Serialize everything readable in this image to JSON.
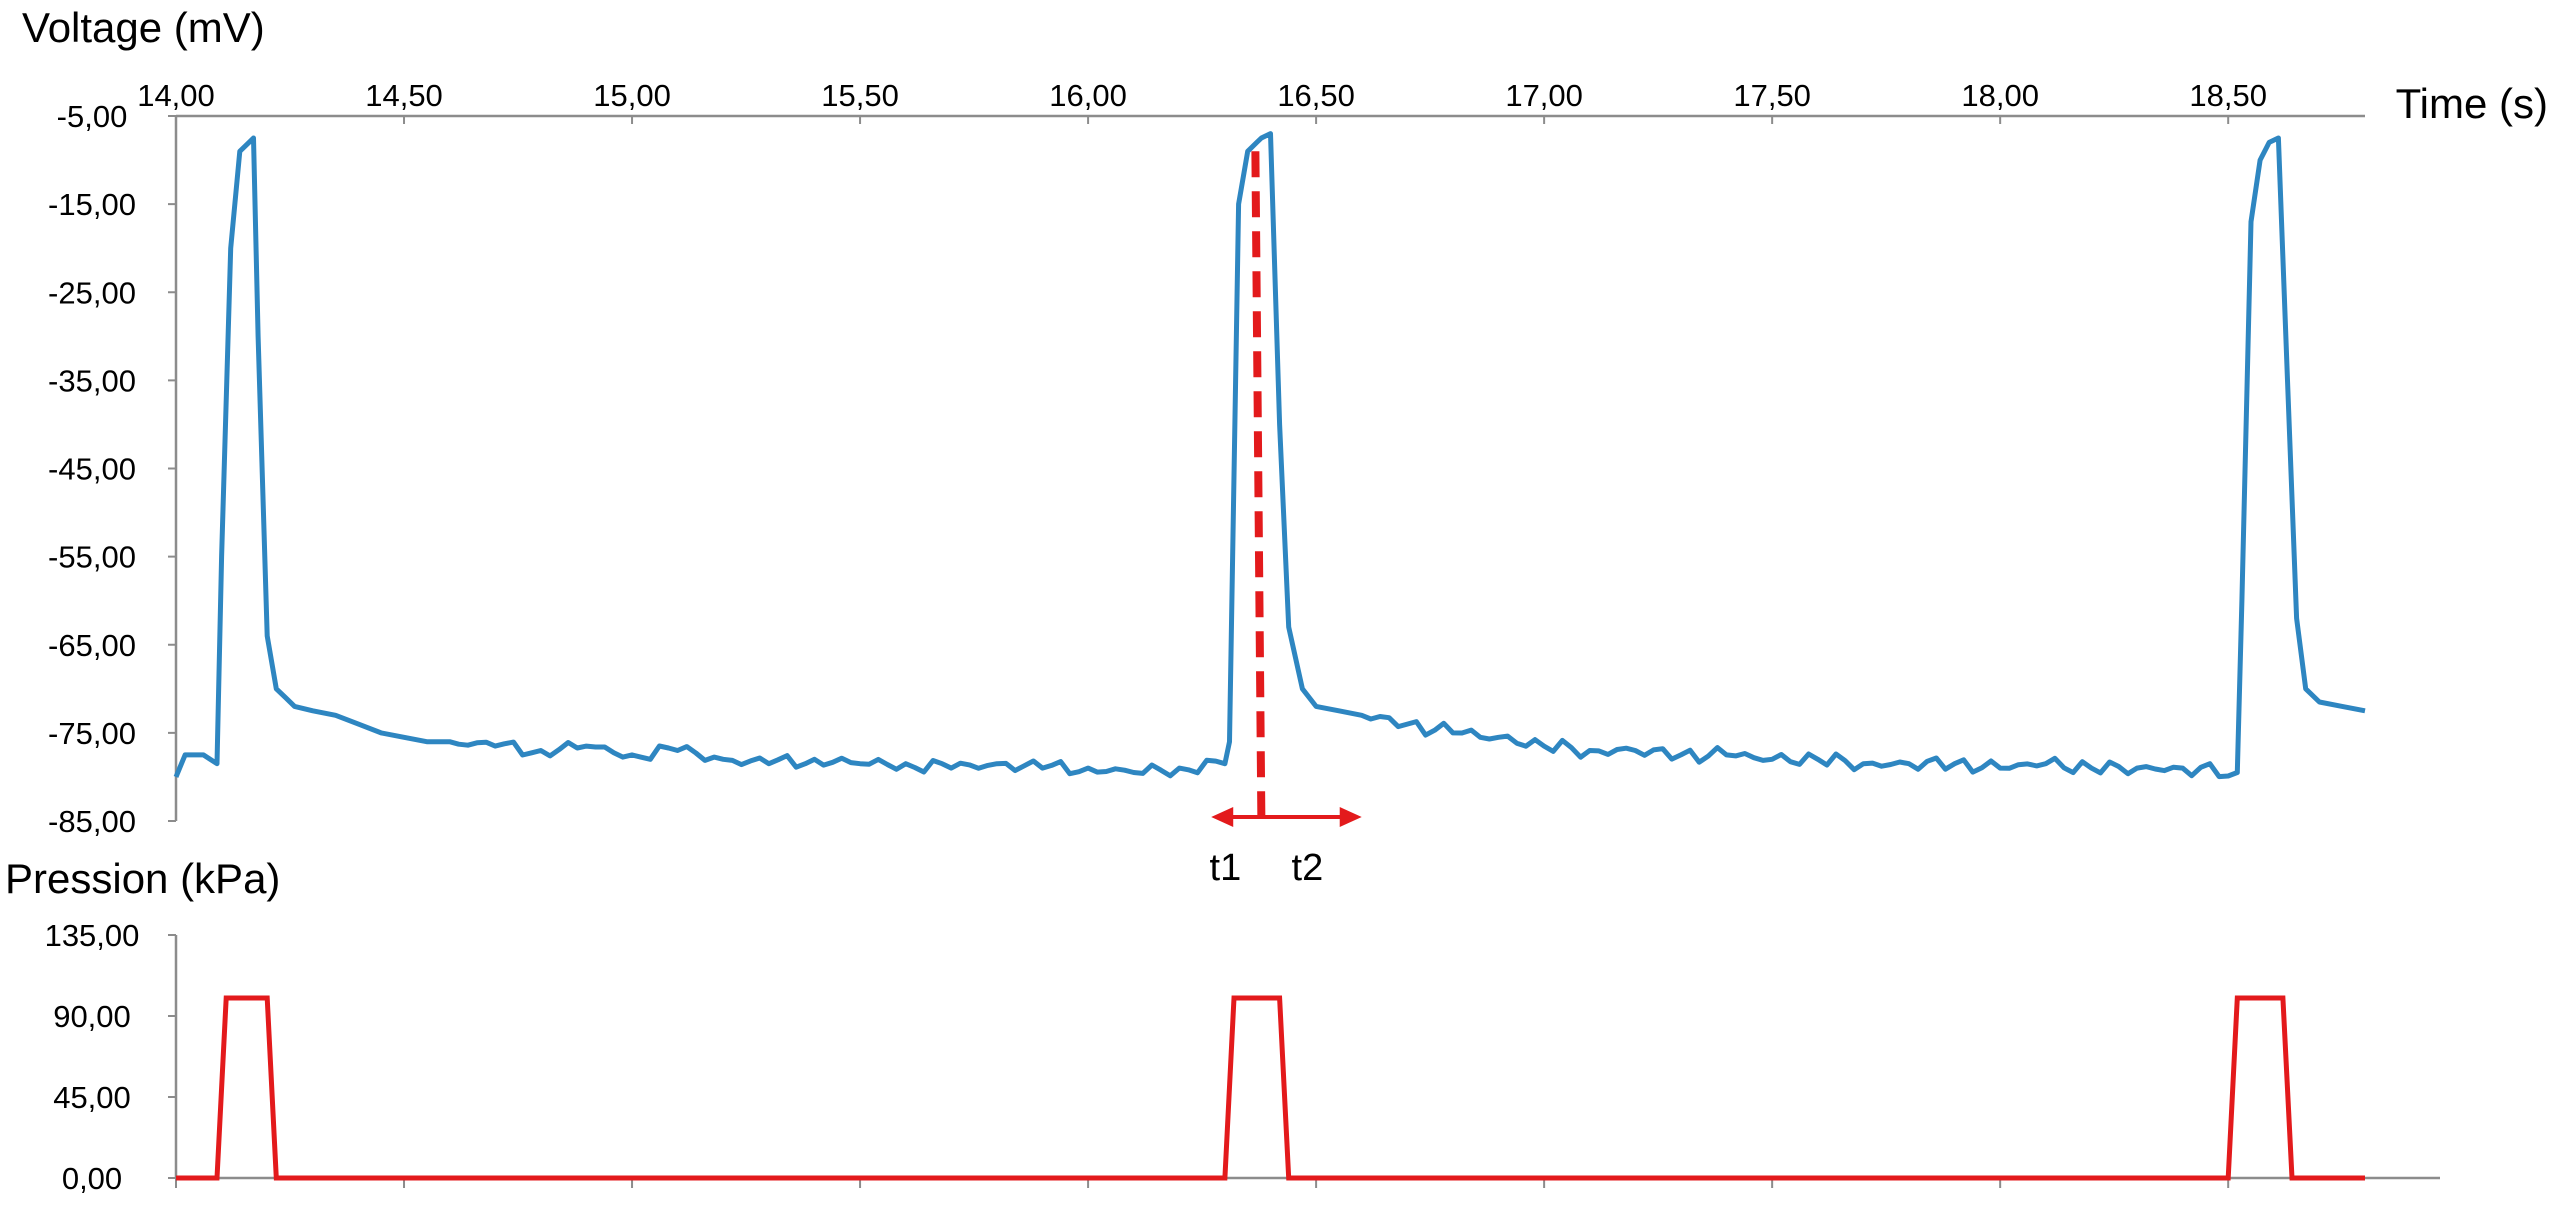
{
  "chart_data": [
    {
      "id": "voltage",
      "type": "line",
      "ylabel": "Voltage (mV)",
      "xlabel": "Time (s)",
      "xlim": [
        14.0,
        18.8
      ],
      "ylim": [
        -85.0,
        -5.0
      ],
      "x_ticks": [
        14.0,
        14.5,
        15.0,
        15.5,
        16.0,
        16.5,
        17.0,
        17.5,
        18.0,
        18.5
      ],
      "x_tick_labels": [
        "14,00",
        "14,50",
        "15,00",
        "15,50",
        "16,00",
        "16,50",
        "17,00",
        "17,50",
        "18,00",
        "18,50"
      ],
      "y_ticks": [
        -5,
        -15,
        -25,
        -35,
        -45,
        -55,
        -65,
        -75,
        -85
      ],
      "y_tick_labels": [
        "-5,00",
        "-15,00",
        "-25,00",
        "-35,00",
        "-45,00",
        "-55,00",
        "-65,00",
        "-75,00",
        "-85,00"
      ],
      "grid": false,
      "series": [
        {
          "color": "#2e86c1",
          "x": [
            14.0,
            14.02,
            14.06,
            14.09,
            14.1,
            14.12,
            14.14,
            14.16,
            14.17,
            14.18,
            14.2,
            14.22,
            14.24,
            14.26,
            14.3,
            14.35,
            14.4,
            14.45,
            14.5,
            14.55,
            14.6,
            14.7,
            14.8,
            14.9,
            15.0,
            15.1,
            15.2,
            15.3,
            15.4,
            15.5,
            15.6,
            15.7,
            15.8,
            15.9,
            16.0,
            16.1,
            16.2,
            16.3,
            16.31,
            16.33,
            16.35,
            16.37,
            16.38,
            16.4,
            16.42,
            16.44,
            16.47,
            16.5,
            16.55,
            16.6,
            16.7,
            16.8,
            16.9,
            17.0,
            17.1,
            17.2,
            17.3,
            17.4,
            17.5,
            17.6,
            17.7,
            17.8,
            17.9,
            18.0,
            18.1,
            18.2,
            18.3,
            18.4,
            18.52,
            18.53,
            18.55,
            18.57,
            18.59,
            18.61,
            18.63,
            18.65,
            18.67,
            18.7,
            18.75,
            18.8
          ],
          "y": [
            -80.0,
            -77.5,
            -77.5,
            -78.5,
            -55.0,
            -20.0,
            -9.0,
            -8.0,
            -7.5,
            -30.0,
            -64.0,
            -70.0,
            -71.0,
            -72.0,
            -72.5,
            -73.0,
            -74.0,
            -75.0,
            -75.5,
            -76.0,
            -76.0,
            -76.5,
            -77.0,
            -76.5,
            -77.5,
            -77.0,
            -78.0,
            -78.5,
            -78.0,
            -78.5,
            -78.5,
            -79.0,
            -78.5,
            -79.0,
            -79.0,
            -79.5,
            -79.0,
            -78.5,
            -76.0,
            -15.0,
            -9.0,
            -8.0,
            -7.5,
            -7.0,
            -40.0,
            -63.0,
            -70.0,
            -72.0,
            -72.5,
            -73.0,
            -74.0,
            -75.0,
            -75.5,
            -76.5,
            -77.0,
            -77.0,
            -77.5,
            -77.5,
            -78.0,
            -78.0,
            -78.5,
            -78.5,
            -78.5,
            -79.0,
            -78.5,
            -79.0,
            -79.0,
            -79.0,
            -79.5,
            -60.0,
            -17.0,
            -10.0,
            -8.0,
            -7.5,
            -35.0,
            -62.0,
            -70.0,
            -71.5,
            -72.0,
            -72.5
          ]
        }
      ]
    },
    {
      "id": "pressure",
      "type": "line",
      "ylabel": "Pression (kPa)",
      "xlim": [
        14.0,
        18.8
      ],
      "ylim": [
        0.0,
        135.0
      ],
      "y_ticks": [
        0,
        45,
        90,
        135
      ],
      "y_tick_labels": [
        "0,00",
        "45,00",
        "90,00",
        "135,00"
      ],
      "grid": false,
      "series": [
        {
          "color": "#e31a1c",
          "x": [
            14.0,
            14.09,
            14.11,
            14.2,
            14.22,
            16.3,
            16.32,
            16.42,
            16.44,
            18.5,
            18.52,
            18.62,
            18.64,
            18.8
          ],
          "y": [
            0,
            0,
            100,
            100,
            0,
            0,
            100,
            100,
            0,
            0,
            100,
            100,
            0,
            0
          ]
        }
      ]
    }
  ],
  "annotations": {
    "t1_label": "t1",
    "t2_label": "t2",
    "marker_time": 16.38,
    "t1_time": 16.27,
    "t2_time": 16.6,
    "color": "#e31a1c"
  }
}
